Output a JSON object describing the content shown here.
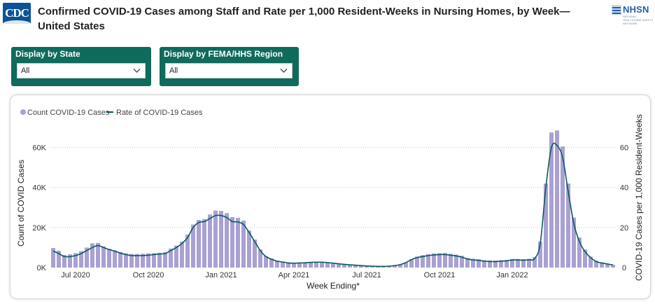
{
  "header": {
    "logo_text": "CDC",
    "title": "Confirmed COVID-19 Cases among Staff and Rate per 1,000 Resident-Weeks in Nursing Homes, by Week— United States",
    "partner_logo_text": "NHSN",
    "partner_logo_subtext": "NATIONAL HEALTHCARE SAFETY NETWORK",
    "partner_icon": "nhsn-shield-icon"
  },
  "filters": [
    {
      "label": "Display by State",
      "value": "All",
      "icon": "chevron-down-icon"
    },
    {
      "label": "Display by FEMA/HHS Region",
      "value": "All",
      "icon": "chevron-down-icon"
    }
  ],
  "colors": {
    "header_green": "#0f6b5b",
    "bar": "#a9a0d4",
    "line": "#0b5a5a",
    "cdc_blue": "#0b5394"
  },
  "chart_data": {
    "type": "bar",
    "title": "",
    "xlabel": "Week Ending*",
    "ylabel": "Count of COVID Cases",
    "y2label": "COVID-19 Cases per 1,000 Resident-Weeks",
    "ylim": [
      0,
      70000
    ],
    "y2lim": [
      0,
      70
    ],
    "yticks": [
      0,
      20000,
      40000,
      60000
    ],
    "ytick_labels": [
      "0K",
      "20K",
      "40K",
      "60K"
    ],
    "y2ticks": [
      0,
      20,
      40,
      60
    ],
    "y2tick_labels": [
      "0",
      "20",
      "40",
      "60"
    ],
    "xtick_labels": [
      "Jul 2020",
      "Oct 2020",
      "Jan 2021",
      "Apr 2021",
      "Jul 2021",
      "Oct 2021",
      "Jan 2022"
    ],
    "xtick_weeks": [
      4,
      17,
      30,
      43,
      56,
      69,
      82
    ],
    "grid": true,
    "legend_position": "top-left",
    "series": [
      {
        "name": "Count COVID-19 Cases",
        "type": "bar",
        "axis": "left",
        "values": [
          9800,
          8400,
          6300,
          6600,
          7200,
          8200,
          10000,
          12100,
          12300,
          10600,
          9400,
          8600,
          7800,
          7100,
          6800,
          6800,
          6900,
          7100,
          7200,
          7400,
          7700,
          9500,
          11000,
          13000,
          16500,
          21500,
          23800,
          24200,
          26500,
          28500,
          28300,
          27200,
          25200,
          24800,
          23500,
          18500,
          14000,
          9000,
          5700,
          4500,
          3500,
          3000,
          2600,
          2400,
          2400,
          2500,
          2700,
          2800,
          2800,
          2600,
          2300,
          2000,
          1700,
          1500,
          1300,
          1100,
          1000,
          800,
          700,
          700,
          800,
          1100,
          1600,
          2500,
          4200,
          5500,
          6200,
          6700,
          7100,
          7200,
          7300,
          6900,
          6500,
          5900,
          4800,
          4400,
          4200,
          3700,
          3600,
          3500,
          3700,
          3800,
          4300,
          4300,
          4200,
          4400,
          5200,
          13000,
          42000,
          67500,
          68500,
          60500,
          42000,
          25000,
          15000,
          9000,
          5500,
          3500,
          2600,
          2000,
          1400
        ]
      },
      {
        "name": "Rate of COVID-19 Cases",
        "type": "line",
        "axis": "right",
        "values": [
          8.3,
          7.0,
          5.5,
          5.5,
          6.0,
          7.0,
          8.5,
          10.0,
          11.0,
          10.0,
          9.0,
          8.2,
          7.2,
          6.5,
          6.0,
          6.0,
          6.0,
          6.2,
          6.5,
          6.8,
          7.0,
          8.5,
          10.0,
          12.0,
          15.0,
          20.0,
          22.5,
          23.0,
          24.5,
          26.0,
          26.0,
          25.0,
          23.0,
          22.8,
          21.5,
          17.5,
          13.0,
          8.5,
          5.5,
          4.2,
          3.2,
          2.8,
          2.3,
          2.2,
          2.3,
          2.4,
          2.6,
          2.7,
          2.7,
          2.5,
          2.2,
          1.9,
          1.6,
          1.4,
          1.2,
          1.0,
          0.8,
          0.7,
          0.6,
          0.6,
          0.7,
          1.0,
          1.5,
          2.5,
          4.0,
          5.0,
          5.5,
          6.0,
          6.3,
          6.5,
          6.5,
          6.2,
          5.8,
          5.2,
          4.3,
          3.8,
          3.6,
          3.2,
          3.0,
          3.0,
          3.2,
          3.4,
          3.8,
          3.8,
          3.7,
          3.9,
          4.5,
          12.0,
          40.0,
          60.0,
          61.0,
          55.0,
          38.0,
          22.0,
          13.0,
          8.0,
          5.0,
          3.0,
          2.3,
          1.8,
          1.3
        ]
      }
    ]
  }
}
